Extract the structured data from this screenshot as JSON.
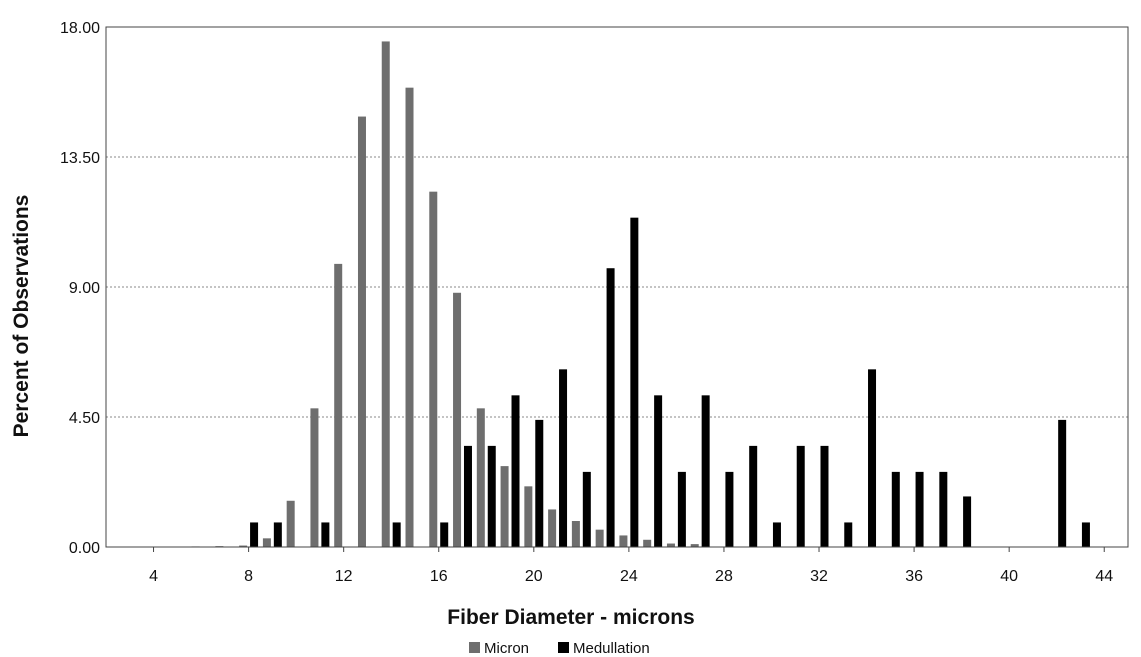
{
  "chart_data": {
    "type": "bar",
    "title": "",
    "xlabel": "Fiber Diameter - microns",
    "ylabel": "Percent of Observations",
    "xlim": [
      2,
      45
    ],
    "ylim": [
      0,
      18
    ],
    "x_ticks": [
      "4",
      "8",
      "12",
      "16",
      "20",
      "24",
      "28",
      "32",
      "36",
      "40",
      "44"
    ],
    "x_tick_values": [
      4,
      8,
      12,
      16,
      20,
      24,
      28,
      32,
      36,
      40,
      44
    ],
    "y_ticks": [
      "0.00",
      "4.50",
      "9.00",
      "13.50",
      "18.00"
    ],
    "y_tick_values": [
      0,
      4.5,
      9,
      13.5,
      18
    ],
    "grid": "horizontal dotted",
    "legend_position": "bottom-center",
    "series": [
      {
        "name": "Micron",
        "color": "#6e6e6e",
        "points": [
          {
            "x": 6,
            "y": 0.02
          },
          {
            "x": 7,
            "y": 0.03
          },
          {
            "x": 8,
            "y": 0.05
          },
          {
            "x": 9,
            "y": 0.3
          },
          {
            "x": 10,
            "y": 1.6
          },
          {
            "x": 11,
            "y": 4.8
          },
          {
            "x": 12,
            "y": 9.8
          },
          {
            "x": 13,
            "y": 14.9
          },
          {
            "x": 14,
            "y": 17.5
          },
          {
            "x": 15,
            "y": 15.9
          },
          {
            "x": 16,
            "y": 12.3
          },
          {
            "x": 17,
            "y": 8.8
          },
          {
            "x": 18,
            "y": 4.8
          },
          {
            "x": 19,
            "y": 2.8
          },
          {
            "x": 20,
            "y": 2.1
          },
          {
            "x": 21,
            "y": 1.3
          },
          {
            "x": 22,
            "y": 0.9
          },
          {
            "x": 23,
            "y": 0.6
          },
          {
            "x": 24,
            "y": 0.4
          },
          {
            "x": 25,
            "y": 0.25
          },
          {
            "x": 26,
            "y": 0.12
          },
          {
            "x": 27,
            "y": 0.1
          }
        ]
      },
      {
        "name": "Medullation",
        "color": "#000000",
        "points": [
          {
            "x": 8,
            "y": 0.85
          },
          {
            "x": 9,
            "y": 0.85
          },
          {
            "x": 11,
            "y": 0.85
          },
          {
            "x": 14,
            "y": 0.85
          },
          {
            "x": 16,
            "y": 0.85
          },
          {
            "x": 17,
            "y": 3.5
          },
          {
            "x": 18,
            "y": 3.5
          },
          {
            "x": 19,
            "y": 5.25
          },
          {
            "x": 20,
            "y": 4.4
          },
          {
            "x": 21,
            "y": 6.15
          },
          {
            "x": 22,
            "y": 2.6
          },
          {
            "x": 23,
            "y": 9.65
          },
          {
            "x": 24,
            "y": 11.4
          },
          {
            "x": 25,
            "y": 5.25
          },
          {
            "x": 26,
            "y": 2.6
          },
          {
            "x": 27,
            "y": 5.25
          },
          {
            "x": 28,
            "y": 2.6
          },
          {
            "x": 29,
            "y": 3.5
          },
          {
            "x": 30,
            "y": 0.85
          },
          {
            "x": 31,
            "y": 3.5
          },
          {
            "x": 32,
            "y": 3.5
          },
          {
            "x": 33,
            "y": 0.85
          },
          {
            "x": 34,
            "y": 6.15
          },
          {
            "x": 35,
            "y": 2.6
          },
          {
            "x": 36,
            "y": 2.6
          },
          {
            "x": 37,
            "y": 2.6
          },
          {
            "x": 38,
            "y": 1.75
          },
          {
            "x": 42,
            "y": 4.4
          },
          {
            "x": 43,
            "y": 0.85
          }
        ]
      }
    ]
  }
}
